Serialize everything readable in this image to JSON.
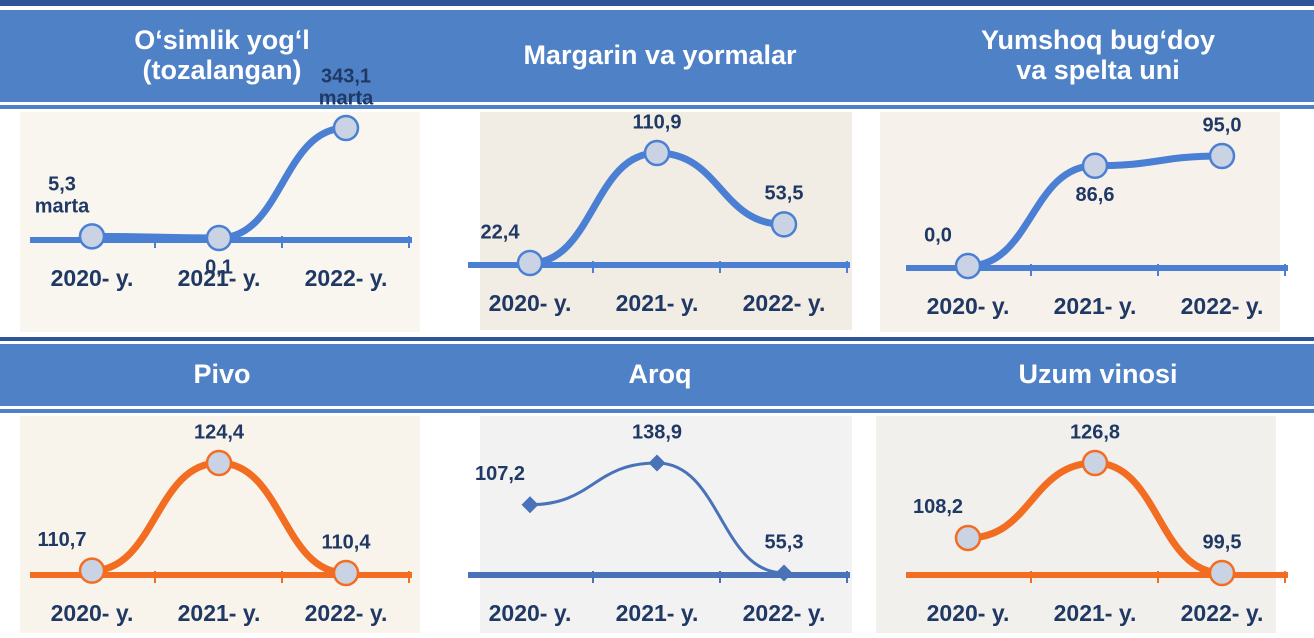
{
  "chart_data": [
    {
      "type": "line",
      "title": "O‘simlik yog‘l\n(tozalangan)",
      "categories": [
        "2020- y.",
        "2021- y.",
        "2022- y."
      ],
      "values": [
        5.3,
        0.1,
        343.1
      ],
      "value_labels": [
        "5,3\nmarta",
        "0,1",
        "343,1\nmarta"
      ],
      "color": "#4a7fd4",
      "marker": "circle"
    },
    {
      "type": "line",
      "title": "Margarin va yormalar",
      "categories": [
        "2020- y.",
        "2021- y.",
        "2022- y."
      ],
      "values": [
        22.4,
        110.9,
        53.5
      ],
      "value_labels": [
        "22,4",
        "110,9",
        "53,5"
      ],
      "color": "#4a7fd4",
      "marker": "circle"
    },
    {
      "type": "line",
      "title": "Yumshoq bug‘doy\nva spelta uni",
      "categories": [
        "2020- y.",
        "2021- y.",
        "2022- y."
      ],
      "values": [
        0.0,
        86.6,
        95.0
      ],
      "value_labels": [
        "0,0",
        "86,6",
        "95,0"
      ],
      "color": "#4a7fd4",
      "marker": "circle"
    },
    {
      "type": "line",
      "title": "Pivo",
      "categories": [
        "2020- y.",
        "2021- y.",
        "2022- y."
      ],
      "values": [
        110.7,
        124.4,
        110.4
      ],
      "value_labels": [
        "110,7",
        "124,4",
        "110,4"
      ],
      "color": "#f26d21",
      "marker": "circle"
    },
    {
      "type": "line",
      "title": "Aroq",
      "categories": [
        "2020- y.",
        "2021- y.",
        "2022- y."
      ],
      "values": [
        107.2,
        138.9,
        55.3
      ],
      "value_labels": [
        "107,2",
        "138,9",
        "55,3"
      ],
      "color": "#4a72b8",
      "marker": "diamond"
    },
    {
      "type": "line",
      "title": "Uzum vinosi",
      "categories": [
        "2020- y.",
        "2021- y.",
        "2022- y."
      ],
      "values": [
        108.2,
        126.8,
        99.5
      ],
      "value_labels": [
        "108,2",
        "126,8",
        "99,5"
      ],
      "color": "#f26d21",
      "marker": "circle"
    }
  ]
}
